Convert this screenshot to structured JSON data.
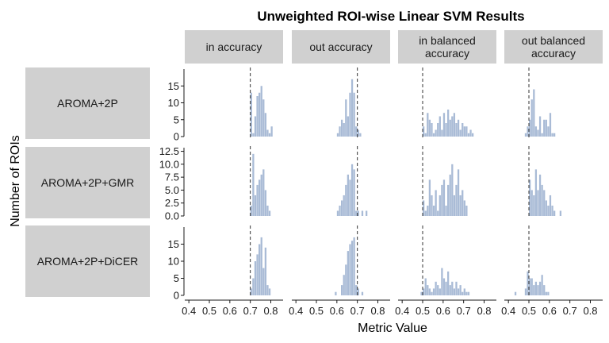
{
  "chart_data": {
    "type": "histogram-facet-grid",
    "title": "Unweighted ROI-wise Linear SVM Results",
    "xlabel": "Metric Value",
    "ylabel": "Number of ROIs",
    "xlim": [
      0.38,
      0.86
    ],
    "x_ticks": [
      "0.4",
      "0.5",
      "0.6",
      "0.7",
      "0.8"
    ],
    "bin_width": 0.01,
    "columns": [
      {
        "id": "in_acc",
        "lines": [
          "in accuracy"
        ],
        "ref": 0.7
      },
      {
        "id": "out_acc",
        "lines": [
          "out accuracy"
        ],
        "ref": 0.7
      },
      {
        "id": "in_bal",
        "lines": [
          "in balanced",
          "accuracy"
        ],
        "ref": 0.5
      },
      {
        "id": "out_bal",
        "lines": [
          "out balanced",
          "accuracy"
        ],
        "ref": 0.5
      }
    ],
    "rows": [
      {
        "label": "AROMA+2P",
        "ymax": 20,
        "y_ticks": [
          0,
          5,
          10,
          15
        ],
        "y_tick_labels": [
          "0",
          "5",
          "10",
          "15"
        ],
        "panels": [
          {
            "start": 0.7,
            "counts": [
              13,
              1,
              6,
              12,
              13,
              15,
              11,
              7,
              2,
              1,
              3
            ]
          },
          {
            "start": 0.6,
            "counts": [
              1,
              3,
              5,
              4,
              11,
              6,
              13,
              17,
              13,
              3,
              2,
              1
            ]
          },
          {
            "start": 0.5,
            "counts": [
              3,
              1,
              7,
              5,
              4,
              1,
              2,
              4,
              6,
              2,
              7,
              4,
              8,
              5,
              6,
              7,
              4,
              5,
              2,
              4,
              3,
              3,
              1,
              2,
              1
            ]
          },
          {
            "start": 0.48,
            "counts": [
              1,
              3,
              5,
              11,
              14,
              3,
              2,
              6,
              1,
              5,
              5,
              3,
              7,
              1,
              1
            ]
          }
        ]
      },
      {
        "label": "AROMA+2P+GMR",
        "ymax": 13.2,
        "y_ticks": [
          0,
          2.5,
          5,
          7.5,
          10,
          12.5
        ],
        "y_tick_labels": [
          "0.0",
          "2.5",
          "5.0",
          "7.5",
          "10.0",
          "12.5"
        ],
        "panels": [
          {
            "start": 0.7,
            "counts": [
              2,
              12,
              4,
              6,
              7,
              8,
              9,
              5,
              2,
              1
            ]
          },
          {
            "start": 0.6,
            "counts": [
              1,
              2,
              3,
              4,
              6,
              8,
              7,
              10,
              9,
              1,
              1,
              0,
              1,
              0,
              1
            ]
          },
          {
            "start": 0.5,
            "counts": [
              3,
              1,
              2,
              7,
              4,
              2,
              5,
              1,
              4,
              6,
              7,
              2,
              6,
              8,
              10,
              4,
              6,
              9,
              4,
              5,
              3,
              2
            ]
          },
          {
            "start": 0.5,
            "counts": [
              7,
              5,
              4,
              9,
              5,
              8,
              6,
              5,
              3,
              2,
              4,
              2,
              1,
              0,
              0,
              1
            ]
          }
        ]
      },
      {
        "label": "AROMA+2P+DiCER",
        "ymax": 20,
        "y_ticks": [
          0,
          5,
          10,
          15
        ],
        "y_tick_labels": [
          "0",
          "5",
          "10",
          "15"
        ],
        "panels": [
          {
            "start": 0.7,
            "counts": [
              2,
              5,
              10,
              12,
              15,
              17,
              8,
              14,
              3,
              2
            ]
          },
          {
            "start": 0.59,
            "counts": [
              1,
              0,
              0,
              3,
              6,
              9,
              13,
              15,
              16,
              17,
              3,
              2,
              0,
              1
            ]
          },
          {
            "start": 0.49,
            "counts": [
              1,
              2,
              5,
              3,
              2,
              1,
              2,
              4,
              3,
              2,
              8,
              5,
              4,
              7,
              3,
              4,
              2,
              4,
              2,
              3,
              1,
              2,
              1,
              1
            ]
          },
          {
            "start": 0.43,
            "counts": [
              1,
              0,
              0,
              0,
              0,
              2,
              7,
              5,
              5,
              3,
              4,
              3,
              4,
              6,
              3,
              1,
              1
            ]
          }
        ]
      }
    ]
  }
}
